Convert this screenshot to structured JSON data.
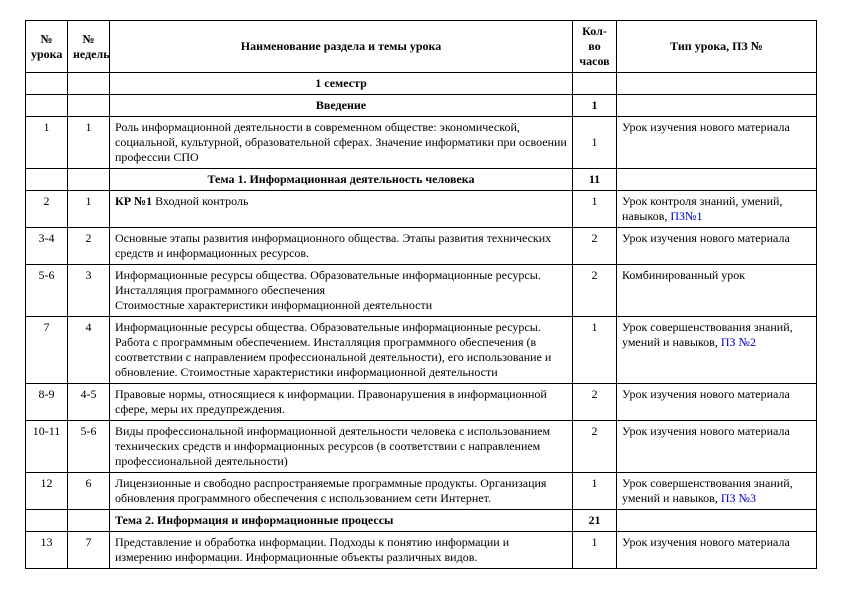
{
  "columns": [
    "№ урока",
    "№ недель",
    "Наименование раздела и темы урока",
    "Кол-во часов",
    "Тип урока, ПЗ №"
  ],
  "semester": "1 семестр",
  "sections": {
    "intro": {
      "title": "Введение",
      "hours": "1"
    },
    "theme1": {
      "title": "Тема 1. Информационная деятельность человека",
      "hours": "11"
    },
    "theme2": {
      "title": "Тема 2. Информация и информационные процессы",
      "hours": "21"
    }
  },
  "rows": {
    "r1": {
      "num": "1",
      "week": "1",
      "title": "Роль информационной деятельности в современном обществе: экономической, социальной, культурной, образовательной сферах. Значение информатики при освоении профессии СПО",
      "hours": "1",
      "type": "Урок  изучения нового материала"
    },
    "r2": {
      "num": "2",
      "week": "1",
      "title_bold": "КР №1",
      "title_rest": " Входной контроль",
      "hours": "1",
      "type_pre": "Урок  контроля знаний, умений, навыков, ",
      "type_link": "ПЗ№1"
    },
    "r3": {
      "num": "3-4",
      "week": "2",
      "title": "Основные этапы развития информационного общества. Этапы развития технических средств и информационных ресурсов.",
      "hours": "2",
      "type": "Урок изучения нового материала"
    },
    "r4": {
      "num": "5-6",
      "week": "3",
      "title": "Информационные ресурсы общества. Образовательные информационные ресурсы. Инсталляция программного обеспечения\nСтоимостные характеристики информационной деятельности",
      "hours": "2",
      "type": "Комбинированный урок"
    },
    "r5": {
      "num": "7",
      "week": "4",
      "title": "Информационные ресурсы общества. Образовательные информационные ресурсы. Работа с программным обеспечением. Инсталляция программного обеспечения (в соответствии с направлением профессиональной деятельности), его использование и обновление.  Стоимостные характеристики информационной деятельности",
      "hours": "1",
      "type_pre": "Урок совершенствования знаний, умений и навыков, ",
      "type_link": "ПЗ №2"
    },
    "r6": {
      "num": "8-9",
      "week": "4-5",
      "title": "Правовые нормы, относящиеся к информации. Правонарушения  в информационной сфере, меры их предупреждения.",
      "hours": "2",
      "type": "Урок изучения нового материала"
    },
    "r7": {
      "num": "10-11",
      "week": "5-6",
      "title": "Виды профессиональной информационной деятельности человека с использованием технических средств и информационных ресурсов (в соответствии с направлением профессиональной деятельности)",
      "hours": "2",
      "type": "Урок изучения нового материала"
    },
    "r8": {
      "num": "12",
      "week": "6",
      "title": "Лицензионные и свободно распространяемые программные продукты. Организация обновления программного обеспечения с использованием сети Интернет.",
      "hours": "1",
      "type_pre": "Урок совершенствования знаний, умений и навыков, ",
      "type_link": "ПЗ №3"
    },
    "r9": {
      "num": "13",
      "week": "7",
      "title": "Представление и обработка информации. Подходы к понятию информации и измерению информации. Информационные объекты различных видов.",
      "hours": "1",
      "type": "Урок изучения нового материала"
    }
  }
}
